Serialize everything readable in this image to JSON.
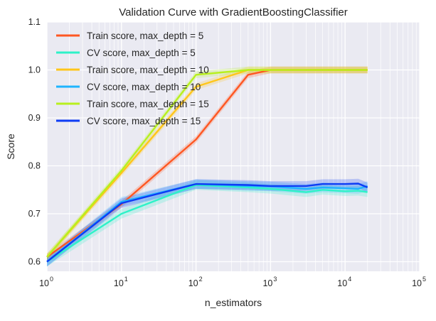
{
  "chart_data": {
    "type": "line",
    "title": "Validation Curve with GradientBoostingClassifier",
    "xlabel": "n_estimators",
    "ylabel": "Score",
    "xscale": "log",
    "xlim": [
      1,
      100000
    ],
    "ylim": [
      0.58,
      1.1
    ],
    "grid": true,
    "legend_position": "top-left",
    "x_ticks": [
      {
        "base": "10",
        "exp": "0"
      },
      {
        "base": "10",
        "exp": "1"
      },
      {
        "base": "10",
        "exp": "2"
      },
      {
        "base": "10",
        "exp": "3"
      },
      {
        "base": "10",
        "exp": "4"
      },
      {
        "base": "10",
        "exp": "5"
      }
    ],
    "y_ticks": [
      "0.6",
      "0.7",
      "0.8",
      "0.9",
      "1.0",
      "1.1"
    ],
    "x": [
      1,
      10,
      100,
      500,
      1000,
      3000,
      5000,
      10000,
      15000,
      20000
    ],
    "series": [
      {
        "name": "Train score, max_depth = 5",
        "color": "#ff5722",
        "values": [
          0.61,
          0.72,
          0.855,
          0.99,
          1.0,
          1.0,
          1.0,
          1.0,
          1.0,
          1.0
        ]
      },
      {
        "name": "CV score, max_depth = 5",
        "color": "#2ef2c8",
        "values": [
          0.6,
          0.7,
          0.76,
          0.755,
          0.752,
          0.745,
          0.75,
          0.747,
          0.748,
          0.745
        ]
      },
      {
        "name": "Train score, max_depth = 10",
        "color": "#ffc61a",
        "values": [
          0.61,
          0.785,
          0.965,
          1.0,
          1.0,
          1.0,
          1.0,
          1.0,
          1.0,
          1.0
        ]
      },
      {
        "name": "CV score, max_depth = 10",
        "color": "#1fb4ff",
        "values": [
          0.6,
          0.725,
          0.762,
          0.758,
          0.757,
          0.752,
          0.755,
          0.753,
          0.752,
          0.758
        ]
      },
      {
        "name": "Train score, max_depth = 15",
        "color": "#b8f01e",
        "values": [
          0.61,
          0.79,
          0.99,
          1.0,
          1.0,
          1.0,
          1.0,
          1.0,
          1.0,
          1.0
        ]
      },
      {
        "name": "CV score, max_depth = 15",
        "color": "#0d3cf5",
        "values": [
          0.6,
          0.722,
          0.762,
          0.76,
          0.758,
          0.758,
          0.762,
          0.762,
          0.763,
          0.755
        ]
      }
    ]
  }
}
